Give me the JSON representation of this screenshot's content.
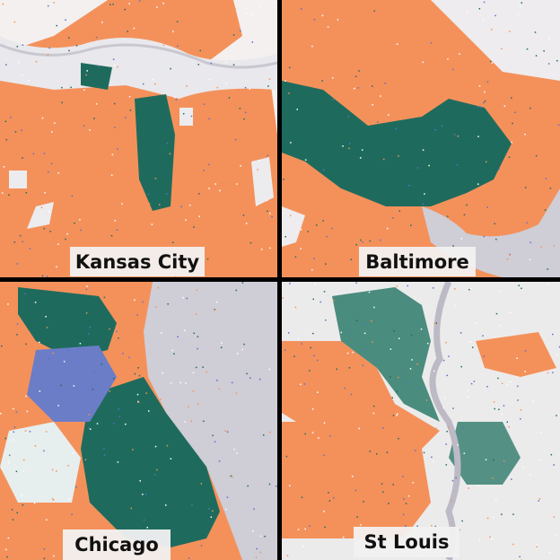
{
  "panels": [
    {
      "label": "Kansas City"
    },
    {
      "label": "Baltimore"
    },
    {
      "label": "Chicago"
    },
    {
      "label": "St Louis"
    }
  ]
}
